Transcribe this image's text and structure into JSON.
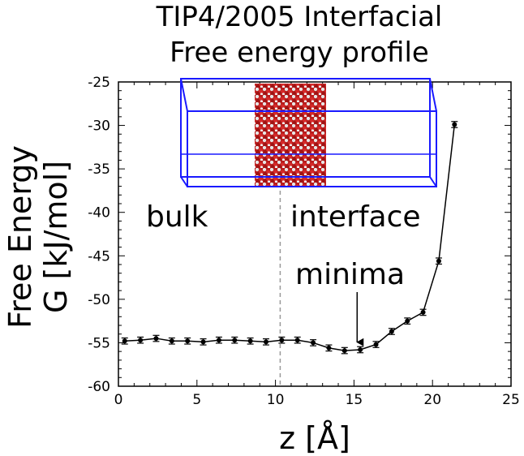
{
  "chart_data": {
    "type": "line",
    "title": [
      "TIP4/2005 Interfacial",
      "Free energy profile"
    ],
    "xlabel": "z [Å]",
    "ylabel": [
      "Free Energy",
      "G [kJ/mol]"
    ],
    "xlim": [
      0,
      25
    ],
    "ylim": [
      -60,
      -25
    ],
    "xticks": [
      0,
      5,
      10,
      15,
      20,
      25
    ],
    "yticks": [
      -25,
      -30,
      -35,
      -40,
      -45,
      -50,
      -55,
      -60
    ],
    "series": [
      {
        "x": [
          0.4,
          1.4,
          2.4,
          3.4,
          4.4,
          5.4,
          6.4,
          7.4,
          8.4,
          9.4,
          10.4,
          11.4,
          12.4,
          13.4,
          14.4,
          15.4,
          16.4,
          17.4,
          18.4,
          19.4,
          20.4,
          21.4
        ],
        "y": [
          -54.8,
          -54.7,
          -54.5,
          -54.8,
          -54.8,
          -54.9,
          -54.7,
          -54.7,
          -54.8,
          -54.9,
          -54.7,
          -54.7,
          -55.0,
          -55.6,
          -55.9,
          -55.8,
          -55.2,
          -53.7,
          -52.5,
          -51.5,
          -45.6,
          -29.9
        ],
        "yerr": 0.35
      }
    ],
    "vline": {
      "x": 10.3,
      "style": "dashed"
    },
    "annotations": {
      "bulk": "bulk",
      "interface": "interface",
      "minima": "minima",
      "minima_arrow_target": {
        "x": 15.2,
        "y": -55.5
      }
    },
    "inset": {
      "description_icon": "water-slab-simulation-box"
    },
    "colors": {
      "line": "#000000",
      "box": "#1a1aff",
      "oxygen": "#cc1f1f",
      "hydrogen": "#e8e8e8",
      "vline": "#999999"
    }
  }
}
